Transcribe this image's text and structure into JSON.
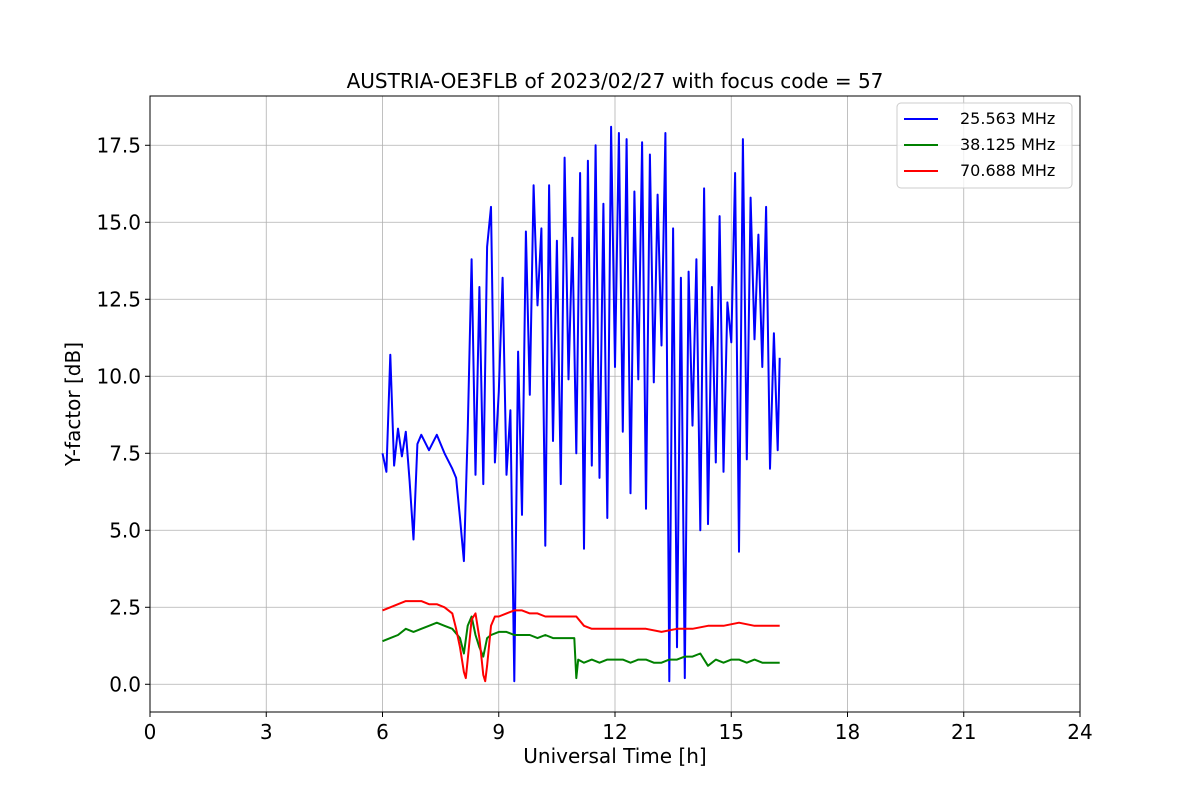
{
  "chart_data": {
    "type": "line",
    "title": "AUSTRIA-OE3FLB of 2023/02/27 with focus code = 57",
    "xlabel": "Universal Time [h]",
    "ylabel": "Y-factor [dB]",
    "xlim": [
      0,
      24
    ],
    "ylim": [
      -0.9,
      19.1
    ],
    "xticks": [
      0,
      3,
      6,
      9,
      12,
      15,
      18,
      21,
      24
    ],
    "xtick_labels": [
      "0",
      "3",
      "6",
      "9",
      "12",
      "15",
      "18",
      "21",
      "24"
    ],
    "yticks": [
      0.0,
      2.5,
      5.0,
      7.5,
      10.0,
      12.5,
      15.0,
      17.5
    ],
    "ytick_labels": [
      "0.0",
      "2.5",
      "5.0",
      "7.5",
      "10.0",
      "12.5",
      "15.0",
      "17.5"
    ],
    "grid": true,
    "legend_position": "top-right",
    "series": [
      {
        "name": "25.563 MHz",
        "color": "#0000ff",
        "x": [
          6.0,
          6.1,
          6.2,
          6.3,
          6.4,
          6.5,
          6.6,
          6.7,
          6.8,
          6.9,
          7.0,
          7.2,
          7.4,
          7.6,
          7.8,
          7.9,
          8.0,
          8.1,
          8.2,
          8.3,
          8.4,
          8.5,
          8.6,
          8.7,
          8.8,
          8.9,
          9.0,
          9.1,
          9.2,
          9.3,
          9.4,
          9.5,
          9.6,
          9.7,
          9.8,
          9.9,
          10.0,
          10.1,
          10.2,
          10.3,
          10.4,
          10.5,
          10.6,
          10.7,
          10.8,
          10.9,
          11.0,
          11.1,
          11.2,
          11.3,
          11.4,
          11.5,
          11.6,
          11.7,
          11.8,
          11.9,
          12.0,
          12.1,
          12.2,
          12.3,
          12.4,
          12.5,
          12.6,
          12.7,
          12.8,
          12.9,
          13.0,
          13.1,
          13.2,
          13.3,
          13.4,
          13.5,
          13.6,
          13.7,
          13.8,
          13.9,
          14.0,
          14.1,
          14.2,
          14.3,
          14.4,
          14.5,
          14.6,
          14.7,
          14.8,
          14.9,
          15.0,
          15.1,
          15.2,
          15.3,
          15.4,
          15.5,
          15.6,
          15.7,
          15.8,
          15.9,
          16.0,
          16.1,
          16.2,
          16.25
        ],
        "y": [
          7.5,
          6.9,
          10.7,
          7.1,
          8.3,
          7.4,
          8.2,
          6.6,
          4.7,
          7.8,
          8.1,
          7.6,
          8.1,
          7.5,
          7.0,
          6.7,
          5.4,
          4.0,
          8.2,
          13.8,
          6.8,
          12.9,
          6.5,
          14.2,
          15.5,
          7.2,
          9.5,
          13.2,
          6.8,
          8.9,
          0.1,
          10.8,
          5.5,
          14.7,
          9.4,
          16.2,
          12.3,
          14.8,
          4.5,
          16.2,
          7.9,
          14.4,
          6.5,
          17.1,
          9.9,
          14.5,
          7.5,
          16.6,
          4.4,
          17.0,
          7.1,
          17.5,
          6.7,
          15.6,
          5.4,
          18.1,
          10.3,
          17.9,
          8.2,
          17.7,
          6.2,
          16.0,
          9.9,
          17.6,
          5.7,
          17.2,
          9.8,
          15.9,
          11.0,
          17.9,
          0.1,
          14.8,
          1.2,
          13.2,
          0.2,
          13.4,
          8.4,
          13.8,
          5.0,
          16.1,
          5.2,
          12.9,
          7.2,
          15.2,
          6.9,
          12.4,
          11.1,
          16.6,
          4.3,
          17.7,
          7.3,
          15.8,
          11.2,
          14.6,
          10.3,
          15.5,
          7.0,
          11.4,
          7.6,
          10.6
        ]
      },
      {
        "name": "38.125 MHz",
        "color": "#008000",
        "x": [
          6.0,
          6.2,
          6.4,
          6.6,
          6.8,
          7.0,
          7.2,
          7.4,
          7.6,
          7.8,
          8.0,
          8.1,
          8.2,
          8.3,
          8.4,
          8.5,
          8.6,
          8.7,
          8.8,
          9.0,
          9.2,
          9.4,
          9.6,
          9.8,
          10.0,
          10.2,
          10.4,
          10.6,
          10.8,
          10.95,
          11.0,
          11.05,
          11.2,
          11.4,
          11.6,
          11.8,
          12.0,
          12.2,
          12.4,
          12.6,
          12.8,
          13.0,
          13.2,
          13.4,
          13.6,
          13.8,
          14.0,
          14.2,
          14.4,
          14.6,
          14.8,
          15.0,
          15.2,
          15.4,
          15.6,
          15.8,
          16.0,
          16.25
        ],
        "y": [
          1.4,
          1.5,
          1.6,
          1.8,
          1.7,
          1.8,
          1.9,
          2.0,
          1.9,
          1.8,
          1.5,
          1.0,
          1.9,
          2.2,
          1.6,
          1.2,
          0.9,
          1.5,
          1.6,
          1.7,
          1.7,
          1.6,
          1.6,
          1.6,
          1.5,
          1.6,
          1.5,
          1.5,
          1.5,
          1.5,
          0.2,
          0.8,
          0.7,
          0.8,
          0.7,
          0.8,
          0.8,
          0.8,
          0.7,
          0.8,
          0.8,
          0.7,
          0.7,
          0.8,
          0.8,
          0.9,
          0.9,
          1.0,
          0.6,
          0.8,
          0.7,
          0.8,
          0.8,
          0.7,
          0.8,
          0.7,
          0.7,
          0.7
        ]
      },
      {
        "name": "70.688 MHz",
        "color": "#ff0000",
        "x": [
          6.0,
          6.2,
          6.4,
          6.6,
          6.8,
          7.0,
          7.2,
          7.4,
          7.6,
          7.8,
          7.9,
          8.0,
          8.1,
          8.15,
          8.2,
          8.3,
          8.4,
          8.5,
          8.6,
          8.65,
          8.7,
          8.8,
          8.9,
          9.0,
          9.2,
          9.4,
          9.6,
          9.8,
          10.0,
          10.2,
          10.4,
          10.6,
          10.8,
          11.0,
          11.2,
          11.4,
          11.6,
          11.8,
          12.0,
          12.4,
          12.8,
          13.2,
          13.6,
          14.0,
          14.4,
          14.8,
          15.2,
          15.6,
          16.0,
          16.25
        ],
        "y": [
          2.4,
          2.5,
          2.6,
          2.7,
          2.7,
          2.7,
          2.6,
          2.6,
          2.5,
          2.3,
          1.8,
          1.2,
          0.4,
          0.2,
          0.8,
          2.1,
          2.3,
          1.5,
          0.3,
          0.1,
          0.6,
          1.9,
          2.2,
          2.2,
          2.3,
          2.4,
          2.4,
          2.3,
          2.3,
          2.2,
          2.2,
          2.2,
          2.2,
          2.2,
          1.9,
          1.8,
          1.8,
          1.8,
          1.8,
          1.8,
          1.8,
          1.7,
          1.8,
          1.8,
          1.9,
          1.9,
          2.0,
          1.9,
          1.9,
          1.9
        ]
      }
    ]
  }
}
